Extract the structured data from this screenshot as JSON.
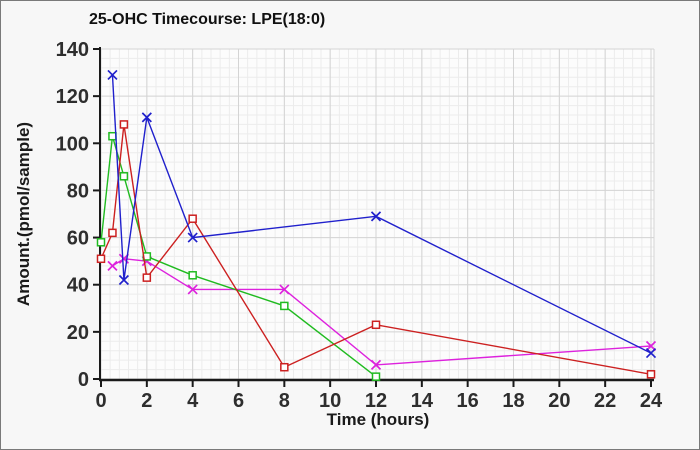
{
  "frame": {
    "background": "#f7f7f7",
    "border_color": "#7a7a7a",
    "plot_background": "#fcfcfc",
    "grid_minor_color": "#ececec",
    "grid_major_color": "#d4d4d4",
    "axis_color": "#1a1a1a"
  },
  "chart_data": {
    "type": "line",
    "title": "25-OHC Timecourse: LPE(18:0)",
    "xlabel": "Time (hours)",
    "ylabel": "Amount.(pmol/sample)",
    "xlim": [
      0,
      24
    ],
    "ylim": [
      0,
      140
    ],
    "x_ticks": [
      0,
      2,
      4,
      6,
      8,
      10,
      12,
      14,
      16,
      18,
      20,
      22,
      24
    ],
    "y_ticks": [
      0,
      20,
      40,
      60,
      80,
      100,
      120,
      140
    ],
    "x_minor_step": 0.4,
    "y_minor_step": 4,
    "grid": "major+minor",
    "legend": "none",
    "series": [
      {
        "name": "magenta",
        "color": "#dd22dd",
        "marker": "x",
        "x": [
          0.5,
          1,
          2,
          4,
          8,
          12,
          24
        ],
        "y": [
          48,
          51,
          50,
          38,
          38,
          6,
          14
        ]
      },
      {
        "name": "green",
        "color": "#20bb20",
        "marker": "square",
        "x": [
          0,
          0.5,
          1,
          2,
          4,
          8,
          12
        ],
        "y": [
          58,
          103,
          86,
          52,
          44,
          31,
          1
        ]
      },
      {
        "name": "red",
        "color": "#cc2020",
        "marker": "square",
        "x": [
          0,
          0.5,
          1,
          2,
          4,
          8,
          12,
          24
        ],
        "y": [
          51,
          62,
          108,
          43,
          68,
          5,
          23,
          2
        ]
      },
      {
        "name": "blue",
        "color": "#2020cc",
        "marker": "x",
        "x": [
          0.5,
          1,
          2,
          4,
          12,
          24
        ],
        "y": [
          129,
          42,
          111,
          60,
          69,
          11
        ]
      }
    ]
  }
}
